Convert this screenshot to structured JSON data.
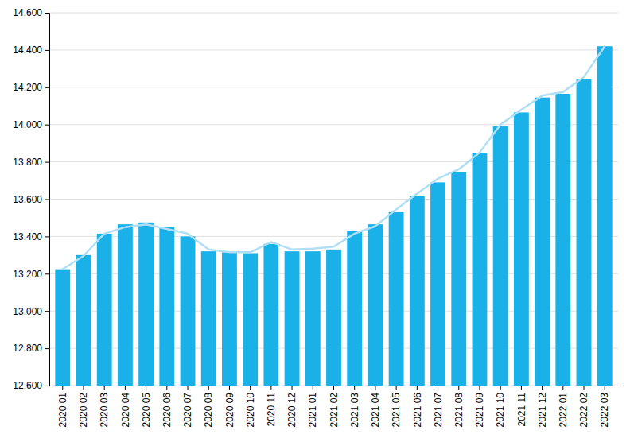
{
  "chart_data": {
    "type": "bar",
    "categories": [
      "2020 01",
      "2020 02",
      "2020 03",
      "2020 04",
      "2020 05",
      "2020 06",
      "2020 07",
      "2020 08",
      "2020 09",
      "2020 10",
      "2020 11",
      "2020 12",
      "2021 01",
      "2021 02",
      "2021 03",
      "2021 04",
      "2021 05",
      "2021 06",
      "2021 07",
      "2021 08",
      "2021 09",
      "2021 10",
      "2021 11",
      "2021 12",
      "2022 01",
      "2022 02",
      "2022 03"
    ],
    "series": [
      {
        "type": "bar",
        "color": "#1ab0e8",
        "values": [
          13.22,
          13.3,
          13.415,
          13.465,
          13.475,
          13.45,
          13.4,
          13.32,
          13.315,
          13.31,
          13.36,
          13.32,
          13.32,
          13.33,
          13.43,
          13.465,
          13.53,
          13.615,
          13.69,
          13.745,
          13.845,
          13.99,
          14.065,
          14.145,
          14.165,
          14.245,
          14.42
        ]
      },
      {
        "type": "line",
        "color": "#b0dff5",
        "values": [
          13.225,
          13.295,
          13.415,
          13.45,
          13.465,
          13.44,
          13.415,
          13.33,
          13.315,
          13.315,
          13.37,
          13.33,
          13.335,
          13.345,
          13.415,
          13.455,
          13.545,
          13.63,
          13.71,
          13.76,
          13.85,
          14.0,
          14.08,
          14.155,
          14.175,
          14.255,
          14.42
        ]
      }
    ],
    "ylim": [
      12.6,
      14.6
    ],
    "yticks": [
      {
        "value": 12.6,
        "label": "12.600"
      },
      {
        "value": 12.8,
        "label": "12.800"
      },
      {
        "value": 13.0,
        "label": "13.000"
      },
      {
        "value": 13.2,
        "label": "13.200"
      },
      {
        "value": 13.4,
        "label": "13.400"
      },
      {
        "value": 13.6,
        "label": "13.600"
      },
      {
        "value": 13.8,
        "label": "13.800"
      },
      {
        "value": 14.0,
        "label": "14.000"
      },
      {
        "value": 14.2,
        "label": "14.200"
      },
      {
        "value": 14.4,
        "label": "14.400"
      },
      {
        "value": 14.6,
        "label": "14.600"
      }
    ],
    "grid": true
  }
}
